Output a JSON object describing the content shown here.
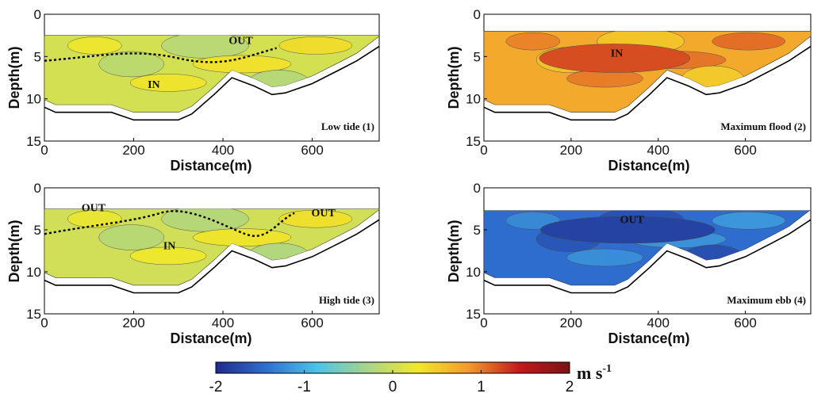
{
  "chart_data": {
    "type": "heatmap",
    "title": "",
    "xlabel": "Distance(m)",
    "ylabel": "Depth(m)",
    "xlim": [
      0,
      750
    ],
    "ylim": [
      15,
      0
    ],
    "x_ticks": [
      0,
      200,
      400,
      600
    ],
    "y_ticks": [
      0,
      5,
      10,
      15
    ],
    "colorbar": {
      "min": -2,
      "max": 2,
      "ticks": [
        -2,
        -1,
        0,
        1,
        2
      ],
      "unit_base": "m s",
      "unit_exp": "-1",
      "colormap": [
        "#1f2b8a",
        "#2f6fd0",
        "#4cc4e8",
        "#a8d48a",
        "#f2e82a",
        "#f39a2c",
        "#c4191c",
        "#7a1315"
      ]
    },
    "bottom_profile": {
      "distance": [
        0,
        25,
        150,
        200,
        300,
        330,
        380,
        420,
        470,
        510,
        540,
        600,
        660,
        700,
        750
      ],
      "depth": [
        11,
        11.6,
        11.6,
        12.5,
        12.5,
        11.8,
        9.5,
        7.5,
        8.5,
        9.5,
        9.3,
        8.2,
        6.6,
        5.5,
        3.8
      ]
    },
    "panels": [
      {
        "label": "Low tide (1)",
        "mean_velocity": 0.05,
        "annotations": [
          {
            "text": "OUT",
            "distance": 440,
            "depth": 3.5
          },
          {
            "text": "IN",
            "distance": 245,
            "depth": 8.7
          }
        ]
      },
      {
        "label": "Maximum flood (2)",
        "mean_velocity": 0.75,
        "annotations": [
          {
            "text": "IN",
            "distance": 305,
            "depth": 5.0
          }
        ]
      },
      {
        "label": "High tide (3)",
        "mean_velocity": 0.02,
        "annotations": [
          {
            "text": "OUT",
            "distance": 110,
            "depth": 2.8
          },
          {
            "text": "OUT",
            "distance": 625,
            "depth": 3.4
          },
          {
            "text": "IN",
            "distance": 280,
            "depth": 7.3
          }
        ]
      },
      {
        "label": "Maximum ebb (4)",
        "mean_velocity": -1.45,
        "annotations": [
          {
            "text": "OUT",
            "distance": 340,
            "depth": 4.2
          }
        ]
      }
    ]
  }
}
